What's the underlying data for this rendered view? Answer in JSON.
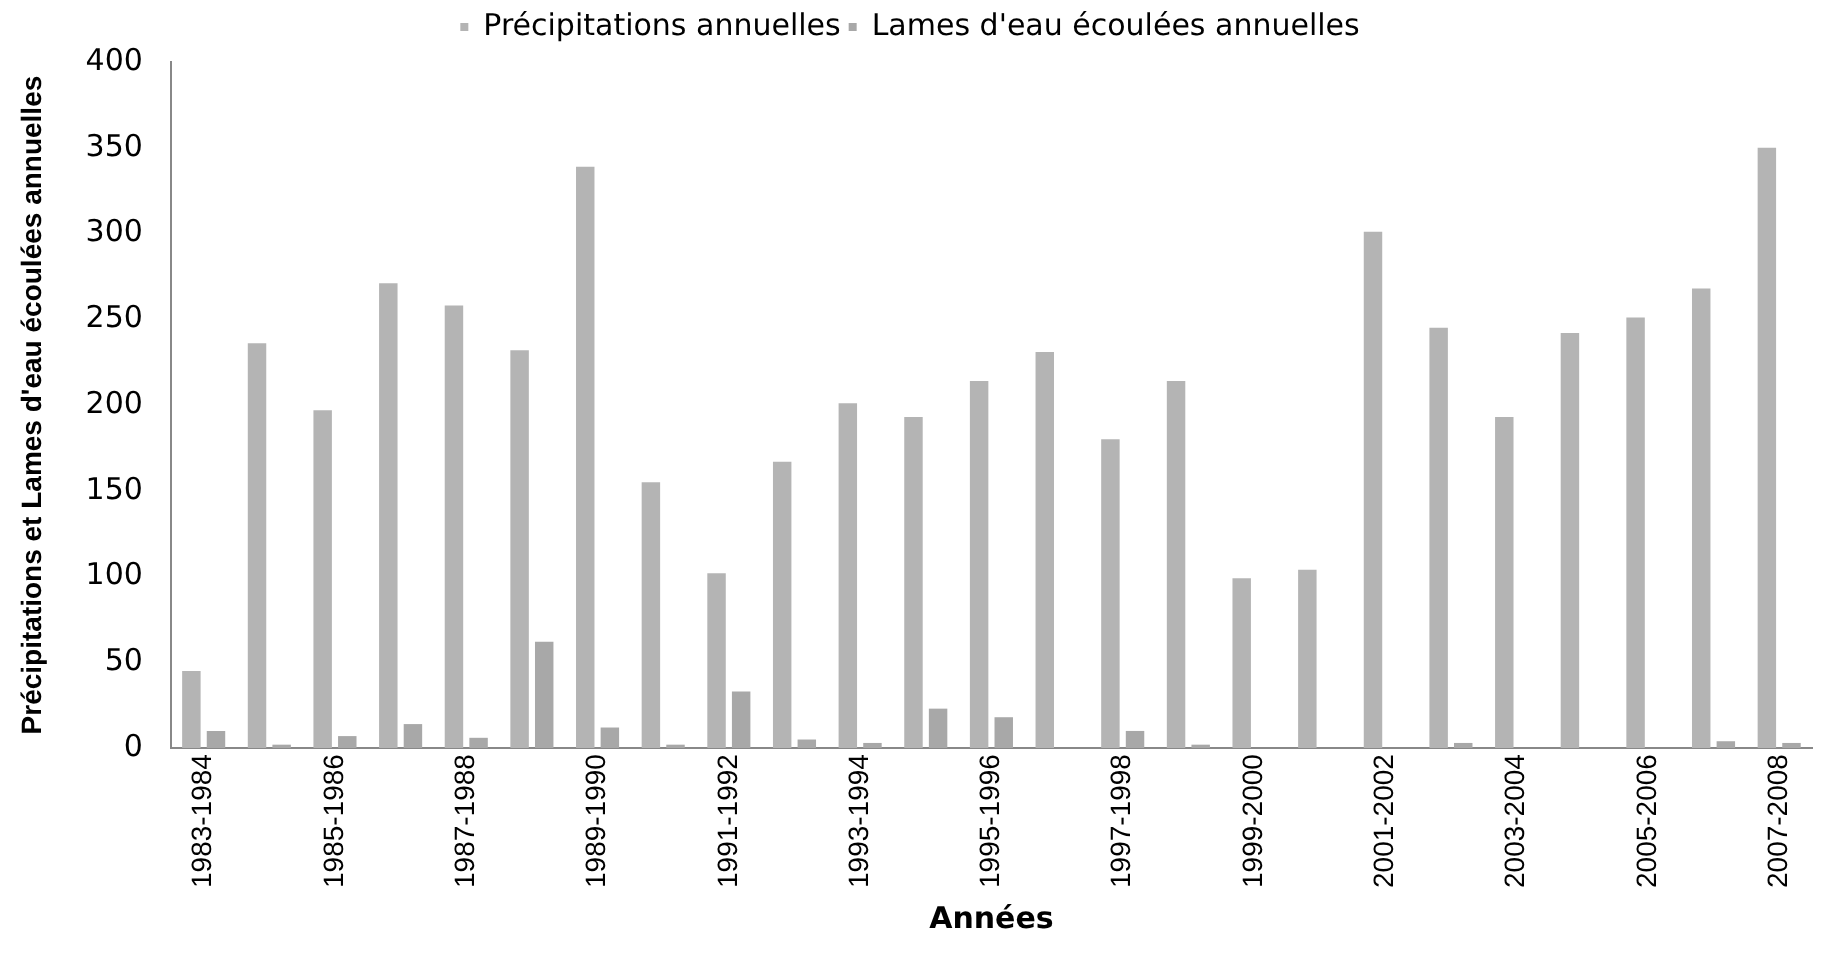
{
  "chart_data": {
    "type": "bar",
    "xlabel": "Années",
    "ylabel": "Précipitations et Lames d'eau écoulées annuelles",
    "categories": [
      "1983-1984",
      null,
      "1985-1986",
      null,
      "1987-1988",
      null,
      "1989-1990",
      null,
      "1991-1992",
      null,
      "1993-1994",
      null,
      "1995-1996",
      null,
      "1997-1998",
      null,
      "1999-2000",
      null,
      "2001-2002",
      null,
      "2003-2004",
      null,
      "2005-2006",
      null,
      "2007-2008"
    ],
    "series": [
      {
        "name": "Précipitations annuelles",
        "color": "#b4b4b4",
        "values": [
          45,
          236,
          197,
          271,
          258,
          232,
          339,
          155,
          102,
          167,
          201,
          193,
          214,
          231,
          180,
          214,
          99,
          104,
          301,
          245,
          193,
          242,
          251,
          268,
          350
        ]
      },
      {
        "name": "Lames d'eau écoulées annuelles",
        "color": "#a8a8a8",
        "values": [
          10,
          2,
          7,
          14,
          6,
          62,
          12,
          2,
          33,
          5,
          3,
          23,
          18,
          null,
          10,
          2,
          0,
          0,
          null,
          3,
          0,
          null,
          null,
          4,
          3
        ]
      }
    ],
    "ylim": [
      0,
      400
    ],
    "yticks": [
      0,
      50,
      100,
      150,
      200,
      250,
      300,
      350,
      400
    ],
    "grid": false,
    "legend": "top"
  }
}
